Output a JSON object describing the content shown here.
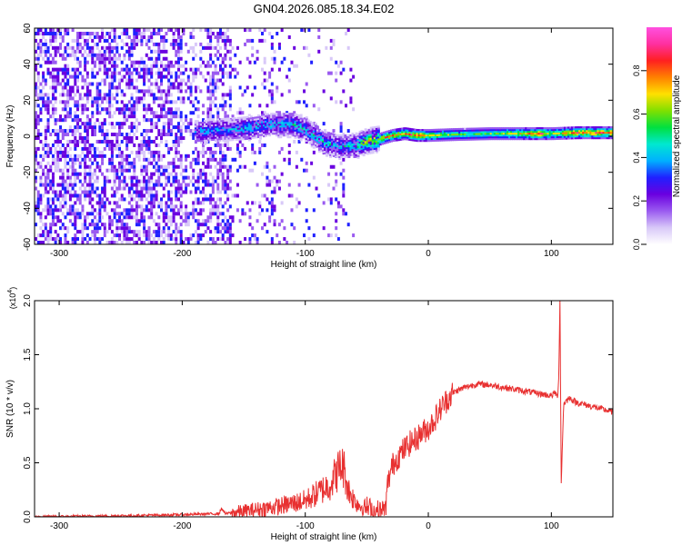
{
  "title": "GN04.2026.085.18.34.E02",
  "chart_data": [
    {
      "type": "heatmap",
      "description_key": "spectrogram",
      "xlabel": "Height of straight line (km)",
      "ylabel": "Frequency (Hz)",
      "xlim": [
        -320,
        150
      ],
      "ylim": [
        -60,
        60
      ],
      "xticks": [
        -300,
        -200,
        -100,
        0,
        100
      ],
      "xtick_labels": [
        "-300",
        "-200",
        "-100",
        "0",
        "100"
      ],
      "yticks": [
        60,
        40,
        20,
        0,
        -20,
        -40,
        -60
      ],
      "ytick_labels": [
        "60",
        "40",
        "20",
        "0",
        "-20",
        "-40",
        "-60"
      ],
      "colorbar": {
        "label": "Normalized spectral amplitude",
        "range": [
          0.0,
          1.0
        ],
        "ticks": [
          0.0,
          0.2,
          0.4,
          0.6,
          0.8
        ],
        "tick_labels": [
          "0.0",
          "0.2",
          "0.4",
          "0.6",
          "0.8"
        ],
        "colors": [
          "#ffffff",
          "#d8c8f8",
          "#9a5af0",
          "#6a00e0",
          "#2020ff",
          "#00b0ff",
          "#00e8d0",
          "#00e040",
          "#80e000",
          "#ffe000",
          "#ff8000",
          "#ff2020",
          "#ff30a0",
          "#ff50e0"
        ]
      },
      "ridge": [
        {
          "x": -185,
          "y": 2,
          "amp": 0.45
        },
        {
          "x": -170,
          "y": 3,
          "amp": 0.4
        },
        {
          "x": -150,
          "y": 4,
          "amp": 0.45
        },
        {
          "x": -130,
          "y": 6,
          "amp": 0.45
        },
        {
          "x": -110,
          "y": 6,
          "amp": 0.5
        },
        {
          "x": -100,
          "y": 3,
          "amp": 0.5
        },
        {
          "x": -85,
          "y": -4,
          "amp": 0.5
        },
        {
          "x": -75,
          "y": -6,
          "amp": 0.45
        },
        {
          "x": -60,
          "y": -6,
          "amp": 0.5
        },
        {
          "x": -50,
          "y": -3,
          "amp": 0.7
        },
        {
          "x": -40,
          "y": -2,
          "amp": 0.75
        },
        {
          "x": -30,
          "y": 0,
          "amp": 0.8
        },
        {
          "x": -20,
          "y": 1,
          "amp": 0.75
        },
        {
          "x": -10,
          "y": 0,
          "amp": 0.9
        },
        {
          "x": 0,
          "y": 0,
          "amp": 0.7
        },
        {
          "x": 20,
          "y": 0.5,
          "amp": 0.6
        },
        {
          "x": 50,
          "y": 1,
          "amp": 0.6
        },
        {
          "x": 80,
          "y": 1,
          "amp": 0.75
        },
        {
          "x": 90,
          "y": 1,
          "amp": 0.9
        },
        {
          "x": 100,
          "y": 1,
          "amp": 0.65
        },
        {
          "x": 120,
          "y": 1.5,
          "amp": 0.85
        },
        {
          "x": 150,
          "y": 1.5,
          "amp": 0.85
        }
      ]
    },
    {
      "type": "line",
      "description_key": "snr",
      "xlabel": "Height of straight line (km)",
      "ylabel": "SNR (10 * v/v)",
      "yscale_label": "(x10",
      "yscale_exponent": "4",
      "yscale_suffix": ")",
      "xlim": [
        -320,
        150
      ],
      "ylim": [
        0.0,
        2.0
      ],
      "xticks": [
        -300,
        -200,
        -100,
        0,
        100
      ],
      "xtick_labels": [
        "-300",
        "-200",
        "-100",
        "0",
        "100"
      ],
      "yticks": [
        0.0,
        0.5,
        1.0,
        1.5,
        2.0
      ],
      "ytick_labels": [
        "0.0",
        "0.5",
        "1.0",
        "1.5",
        "2.0"
      ],
      "line_color": "#e83030",
      "series": [
        {
          "name": "SNR",
          "x": [
            -320,
            -250,
            -200,
            -170,
            -168,
            -165,
            -150,
            -120,
            -100,
            -90,
            -80,
            -75,
            -72,
            -70,
            -68,
            -65,
            -60,
            -55,
            -50,
            -45,
            -40,
            -35,
            -33,
            -30,
            -28,
            -25,
            -20,
            -15,
            -10,
            -5,
            0,
            5,
            10,
            15,
            20,
            30,
            40,
            50,
            60,
            70,
            80,
            90,
            100,
            103,
            105,
            106,
            107,
            108,
            110,
            115,
            120,
            130,
            140,
            150
          ],
          "y": [
            0.0,
            0.01,
            0.02,
            0.03,
            0.08,
            0.03,
            0.05,
            0.1,
            0.15,
            0.22,
            0.3,
            0.4,
            0.45,
            0.48,
            0.42,
            0.25,
            0.15,
            0.1,
            0.08,
            0.05,
            0.04,
            0.05,
            0.3,
            0.45,
            0.5,
            0.55,
            0.62,
            0.68,
            0.72,
            0.78,
            0.82,
            0.9,
            1.0,
            1.08,
            1.15,
            1.2,
            1.23,
            1.22,
            1.2,
            1.18,
            1.16,
            1.14,
            1.12,
            1.15,
            1.1,
            1.3,
            2.0,
            0.3,
            1.05,
            1.1,
            1.06,
            1.03,
            1.0,
            0.97
          ]
        }
      ]
    }
  ]
}
